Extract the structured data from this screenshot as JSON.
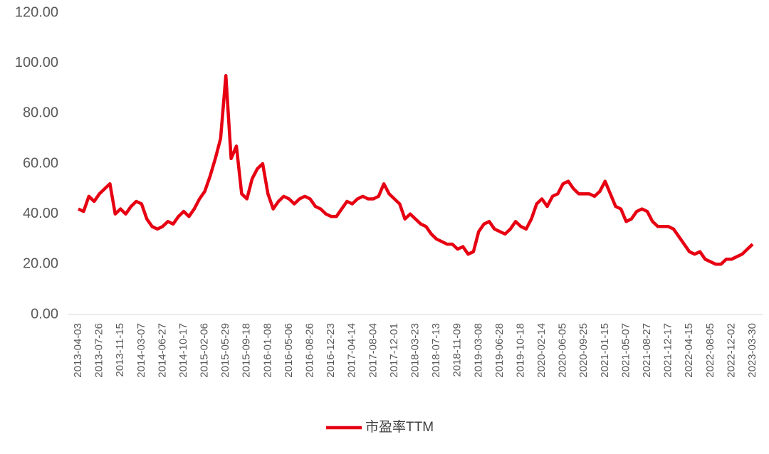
{
  "chart_data": {
    "type": "line",
    "categories": [
      "2013-04-03",
      null,
      null,
      null,
      "2013-07-26",
      null,
      null,
      null,
      "2013-11-15",
      null,
      null,
      null,
      "2014-03-07",
      null,
      null,
      null,
      "2014-06-27",
      null,
      null,
      null,
      "2014-10-17",
      null,
      null,
      null,
      "2015-02-06",
      null,
      null,
      null,
      "2015-05-29",
      null,
      null,
      null,
      "2015-09-18",
      null,
      null,
      null,
      "2016-01-08",
      null,
      null,
      null,
      "2016-05-06",
      null,
      null,
      null,
      "2016-08-26",
      null,
      null,
      null,
      "2016-12-23",
      null,
      null,
      null,
      "2017-04-14",
      null,
      null,
      null,
      "2017-08-04",
      null,
      null,
      null,
      "2017-12-01",
      null,
      null,
      null,
      "2018-03-23",
      null,
      null,
      null,
      "2018-07-13",
      null,
      null,
      null,
      "2018-11-09",
      null,
      null,
      null,
      "2019-03-08",
      null,
      null,
      null,
      "2019-06-28",
      null,
      null,
      null,
      "2019-10-18",
      null,
      null,
      null,
      "2020-02-14",
      null,
      null,
      null,
      "2020-06-05",
      null,
      null,
      null,
      "2020-09-25",
      null,
      null,
      null,
      "2021-01-15",
      null,
      null,
      null,
      "2021-05-07",
      null,
      null,
      null,
      "2021-08-27",
      null,
      null,
      null,
      "2021-12-17",
      null,
      null,
      null,
      "2022-04-15",
      null,
      null,
      null,
      "2022-08-05",
      null,
      null,
      null,
      "2022-12-02",
      null,
      null,
      null,
      "2023-03-30"
    ],
    "series": [
      {
        "name": "市盈率TTM",
        "color": "#e60012",
        "values": [
          42,
          41,
          47,
          45,
          48,
          50,
          52,
          40,
          42,
          40,
          43,
          45,
          44,
          38,
          35,
          34,
          35,
          37,
          36,
          39,
          41,
          39,
          42,
          46,
          49,
          55,
          62,
          70,
          95,
          62,
          67,
          48,
          46,
          54,
          58,
          60,
          48,
          42,
          45,
          47,
          46,
          44,
          46,
          47,
          46,
          43,
          42,
          40,
          39,
          39,
          42,
          45,
          44,
          46,
          47,
          46,
          46,
          47,
          52,
          48,
          46,
          44,
          38,
          40,
          38,
          36,
          35,
          32,
          30,
          29,
          28,
          28,
          26,
          27,
          24,
          25,
          33,
          36,
          37,
          34,
          33,
          32,
          34,
          37,
          35,
          34,
          38,
          44,
          46,
          43,
          47,
          48,
          52,
          53,
          50,
          48,
          48,
          48,
          47,
          49,
          53,
          48,
          43,
          42,
          37,
          38,
          41,
          42,
          41,
          37,
          35,
          35,
          35,
          34,
          31,
          28,
          25,
          24,
          25,
          22,
          21,
          20,
          20,
          22,
          22,
          23,
          24,
          26,
          28
        ]
      }
    ],
    "ylim": [
      0,
      120
    ],
    "yticks": [
      {
        "value": 0,
        "label": "0.00"
      },
      {
        "value": 20,
        "label": "20.00"
      },
      {
        "value": 40,
        "label": "40.00"
      },
      {
        "value": 60,
        "label": "60.00"
      },
      {
        "value": 80,
        "label": "80.00"
      },
      {
        "value": 100,
        "label": "100.00"
      },
      {
        "value": 120,
        "label": "120.00"
      }
    ],
    "legend": "bottom"
  }
}
